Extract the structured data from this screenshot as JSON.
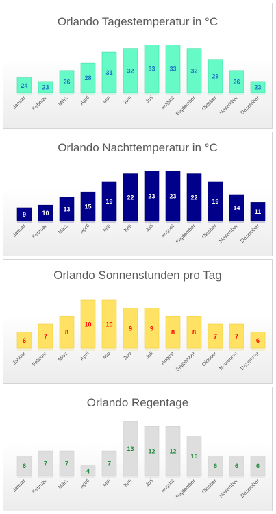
{
  "chart_data": [
    {
      "type": "bar",
      "title": "Orlando Tagestemperatur in °C",
      "categories": [
        "Januar",
        "Februar",
        "März",
        "April",
        "Mai",
        "Juni",
        "Juli",
        "August",
        "September",
        "Oktober",
        "November",
        "Dezember"
      ],
      "values": [
        24,
        23,
        26,
        28,
        31,
        32,
        33,
        33,
        32,
        29,
        26,
        23
      ],
      "ylim": [
        20,
        34
      ],
      "grid": false,
      "colors": {
        "bar": "#66fbc6",
        "bar_edge": "#3fd9a6",
        "label": "#1c74c0",
        "reflection": "#c8f3e5"
      }
    },
    {
      "type": "bar",
      "title": "Orlando Nachttemperatur in °C",
      "categories": [
        "Januar",
        "Februar",
        "März",
        "April",
        "Mai",
        "Juni",
        "Juli",
        "August",
        "September",
        "Oktober",
        "November",
        "Dezember"
      ],
      "values": [
        9,
        10,
        13,
        15,
        19,
        22,
        23,
        23,
        22,
        19,
        14,
        11
      ],
      "ylim": [
        4,
        24
      ],
      "grid": false,
      "colors": {
        "bar": "#00008b",
        "bar_edge": "#000066",
        "label": "#ffffff",
        "reflection": "#b9b9d6"
      }
    },
    {
      "type": "bar",
      "title": "Orlando Sonnenstunden pro Tag",
      "categories": [
        "Januar",
        "Februar",
        "März",
        "April",
        "Mai",
        "Juni",
        "Juli",
        "August",
        "September",
        "Oktober",
        "November",
        "Dezember"
      ],
      "values": [
        6,
        7,
        8,
        10,
        10,
        9,
        9,
        8,
        8,
        7,
        7,
        6
      ],
      "ylim": [
        4,
        10
      ],
      "grid": false,
      "colors": {
        "bar": "#ffe264",
        "bar_edge": "#f2cf40",
        "label": "#ff0000",
        "reflection": "#f4ecc8"
      }
    },
    {
      "type": "bar",
      "title": "Orlando Regentage",
      "categories": [
        "Januar",
        "Februar",
        "März",
        "April",
        "Mai",
        "Juni",
        "Juli",
        "August",
        "September",
        "Oktober",
        "November",
        "Dezember"
      ],
      "values": [
        6,
        7,
        7,
        4,
        7,
        13,
        12,
        12,
        10,
        6,
        6,
        6
      ],
      "ylim": [
        2,
        13
      ],
      "grid": false,
      "colors": {
        "bar": "#dedede",
        "bar_edge": "#cfcfcf",
        "label": "#1e8a3c",
        "reflection": "#e6e6e6"
      }
    }
  ]
}
